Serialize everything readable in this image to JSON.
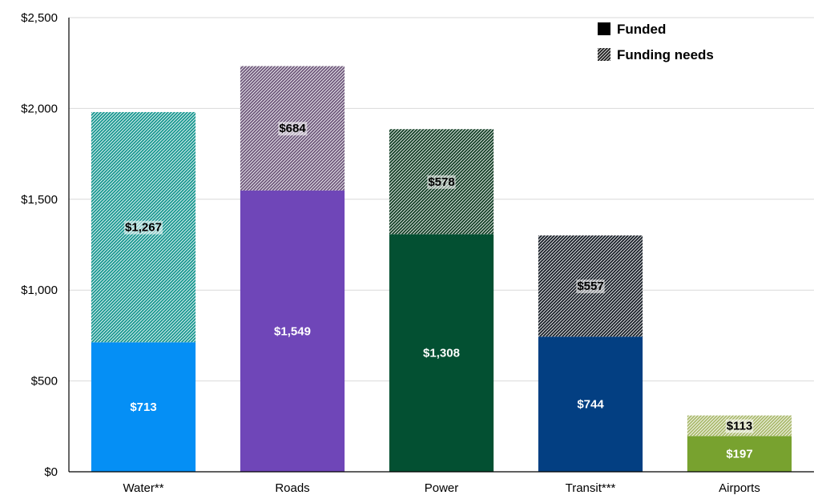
{
  "chart_data": {
    "type": "bar",
    "stacked": true,
    "categories": [
      "Water**",
      "Roads",
      "Power",
      "Transit***",
      "Airports"
    ],
    "series": [
      {
        "name": "Funded",
        "values": [
          713,
          1549,
          1308,
          744,
          197
        ],
        "labels": [
          "$713",
          "$1,549",
          "$1,308",
          "$744",
          "$197"
        ]
      },
      {
        "name": "Funding needs",
        "values": [
          1267,
          684,
          578,
          557,
          113
        ],
        "labels": [
          "$1,267",
          "$684",
          "$578",
          "$557",
          "$113"
        ]
      }
    ],
    "ylim": [
      0,
      2500
    ],
    "yticks": [
      0,
      500,
      1000,
      1500,
      2000,
      2500
    ],
    "ytick_labels": [
      "$0",
      "$500",
      "$1,000",
      "$1,500",
      "$2,000",
      "$2,500"
    ],
    "grid": true,
    "legend_position": "top-right",
    "colors": {
      "funded": [
        "#058ff5",
        "#6f46b8",
        "#035032",
        "#033f82",
        "#78a22f"
      ],
      "needs_base": [
        "#13958e",
        "#6b5478",
        "#0e3b21",
        "#141b24",
        "#a9b86a"
      ]
    }
  }
}
